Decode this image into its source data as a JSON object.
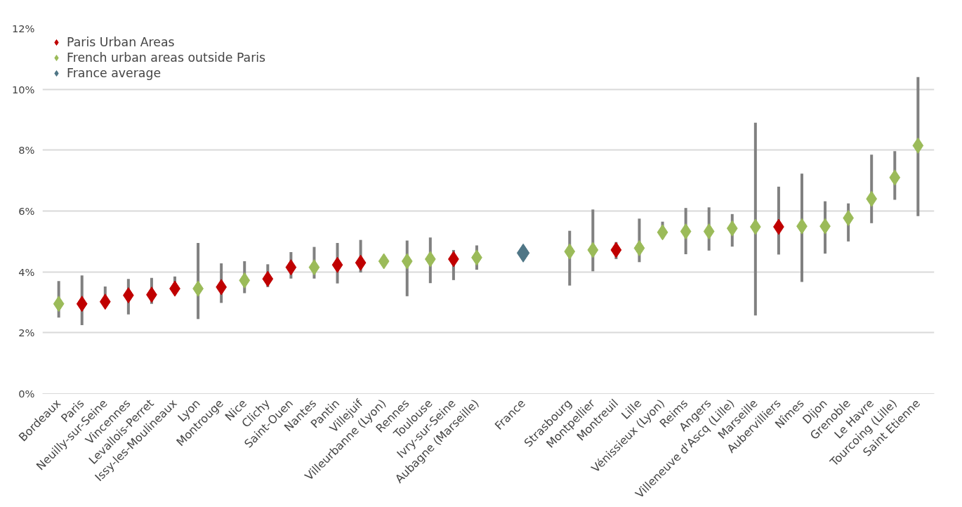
{
  "chart_data": {
    "type": "scatter",
    "categories": [
      "Bordeaux",
      "Paris",
      "Neuilly-sur-Seine",
      "Vincennes",
      "Levallois-Perret",
      "Issy-les-Moulineaux",
      "Lyon",
      "Montrouge",
      "Nice",
      "Clichy",
      "Saint-Ouen",
      "Nantes",
      "Pantin",
      "Villejuif",
      "Villeurbanne (Lyon)",
      "Rennes",
      "Toulouse",
      "Ivry-sur-Seine",
      "Aubagne (Marseille)",
      null,
      "France",
      null,
      "Strasbourg",
      "Montpellier",
      "Montreuil",
      "Lille",
      "Vénissieux (Lyon)",
      "Reims",
      "Angers",
      "Villeneuve d'Ascq (Lille)",
      "Marseille",
      "Aubervilliers",
      "Nîmes",
      "Dijon",
      "Grenoble",
      "Le Havre",
      "Tourcoing (Lille)",
      "Saint Etienne"
    ],
    "series": [
      {
        "name": "Paris Urban Areas",
        "color": "#c00000",
        "values": [
          null,
          2.95,
          3.02,
          3.23,
          3.25,
          3.45,
          null,
          3.5,
          null,
          3.77,
          4.15,
          null,
          4.23,
          4.3,
          null,
          null,
          null,
          4.42,
          null,
          null,
          null,
          null,
          null,
          null,
          4.72,
          null,
          null,
          null,
          null,
          null,
          null,
          5.48,
          null,
          null,
          null,
          null,
          null,
          null
        ],
        "errors": [
          null,
          [
            2.25,
            3.88
          ],
          [
            2.9,
            3.52
          ],
          [
            2.6,
            3.77
          ],
          [
            2.95,
            3.8
          ],
          [
            3.3,
            3.85
          ],
          null,
          [
            2.98,
            4.28
          ],
          null,
          [
            3.5,
            4.25
          ],
          [
            3.78,
            4.65
          ],
          null,
          [
            3.62,
            4.95
          ],
          [
            3.98,
            5.05
          ],
          null,
          null,
          null,
          [
            3.73,
            4.72
          ],
          null,
          null,
          null,
          null,
          null,
          null,
          [
            4.42,
            4.98
          ],
          null,
          null,
          null,
          null,
          null,
          null,
          [
            4.57,
            6.8
          ],
          null,
          null,
          null,
          null,
          null,
          null
        ]
      },
      {
        "name": "French urban areas outside Paris",
        "color": "#9bbb59",
        "values": [
          2.95,
          null,
          null,
          null,
          null,
          null,
          3.45,
          null,
          3.72,
          null,
          null,
          4.15,
          null,
          null,
          4.35,
          4.35,
          4.42,
          null,
          4.47,
          null,
          null,
          null,
          4.67,
          4.72,
          null,
          4.78,
          5.3,
          5.33,
          5.33,
          5.43,
          5.48,
          null,
          5.5,
          5.5,
          5.77,
          6.4,
          7.1,
          8.15
        ],
        "errors": [
          [
            2.5,
            3.7
          ],
          null,
          null,
          null,
          null,
          null,
          [
            2.45,
            4.95
          ],
          null,
          [
            3.3,
            4.35
          ],
          null,
          null,
          [
            3.78,
            4.82
          ],
          null,
          null,
          null,
          [
            3.2,
            5.03
          ],
          [
            3.63,
            5.13
          ],
          null,
          [
            4.07,
            4.87
          ],
          null,
          null,
          null,
          [
            3.55,
            5.35
          ],
          [
            4.02,
            6.05
          ],
          null,
          [
            4.32,
            5.75
          ],
          [
            5.1,
            5.65
          ],
          [
            4.58,
            6.1
          ],
          [
            4.7,
            6.12
          ],
          [
            4.83,
            5.9
          ],
          [
            2.57,
            8.9
          ],
          null,
          [
            3.67,
            7.23
          ],
          [
            4.6,
            6.32
          ],
          [
            5.0,
            6.25
          ],
          [
            5.6,
            7.85
          ],
          [
            6.37,
            7.97
          ],
          [
            5.83,
            10.4
          ]
        ]
      },
      {
        "name": "France average",
        "color": "#4f7686",
        "values": [
          null,
          null,
          null,
          null,
          null,
          null,
          null,
          null,
          null,
          null,
          null,
          null,
          null,
          null,
          null,
          null,
          null,
          null,
          null,
          null,
          4.62,
          null,
          null,
          null,
          null,
          null,
          null,
          null,
          null,
          null,
          null,
          null,
          null,
          null,
          null,
          null,
          null,
          null
        ]
      }
    ],
    "ylim": [
      0,
      12
    ],
    "yticks": [
      {
        "value": 0,
        "label": "0%"
      },
      {
        "value": 2,
        "label": "2%"
      },
      {
        "value": 4,
        "label": "4%"
      },
      {
        "value": 6,
        "label": "6%"
      },
      {
        "value": 8,
        "label": "8%"
      },
      {
        "value": 10,
        "label": "10%"
      },
      {
        "value": 12,
        "label": "12%"
      }
    ],
    "grid": "y",
    "legend": "top left",
    "marker": "diamond"
  }
}
